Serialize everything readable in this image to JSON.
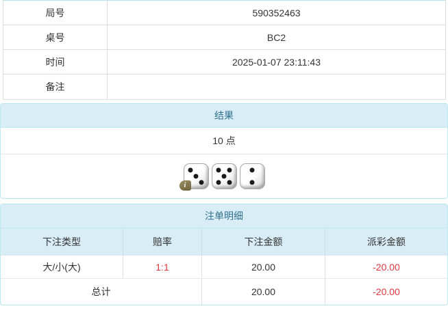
{
  "info_table": {
    "rows": [
      {
        "label": "局号",
        "value": "590352463"
      },
      {
        "label": "桌号",
        "value": "BC2"
      },
      {
        "label": "时间",
        "value": "2025-01-07 23:11:43"
      },
      {
        "label": "备注",
        "value": ""
      }
    ]
  },
  "result_panel": {
    "title": "结果",
    "points": "10 点",
    "dice": [
      3,
      5,
      2
    ],
    "info_badge": "i"
  },
  "bets_panel": {
    "title": "注单明细",
    "columns": [
      "下注类型",
      "赔率",
      "下注金额",
      "派彩金额"
    ],
    "rows": [
      {
        "bet_type": "大/小(大)",
        "odds": "1:1",
        "bet_amount": "20.00",
        "payout": "-20.00"
      }
    ],
    "total": {
      "label": "总计",
      "bet_amount": "20.00",
      "payout": "-20.00"
    }
  },
  "colors": {
    "header_bg": "#d9edf7",
    "header_text": "#31708f",
    "panel_border": "#bce8f1",
    "row_border": "#dddddd",
    "text": "#333333",
    "negative": "#e0383f"
  }
}
